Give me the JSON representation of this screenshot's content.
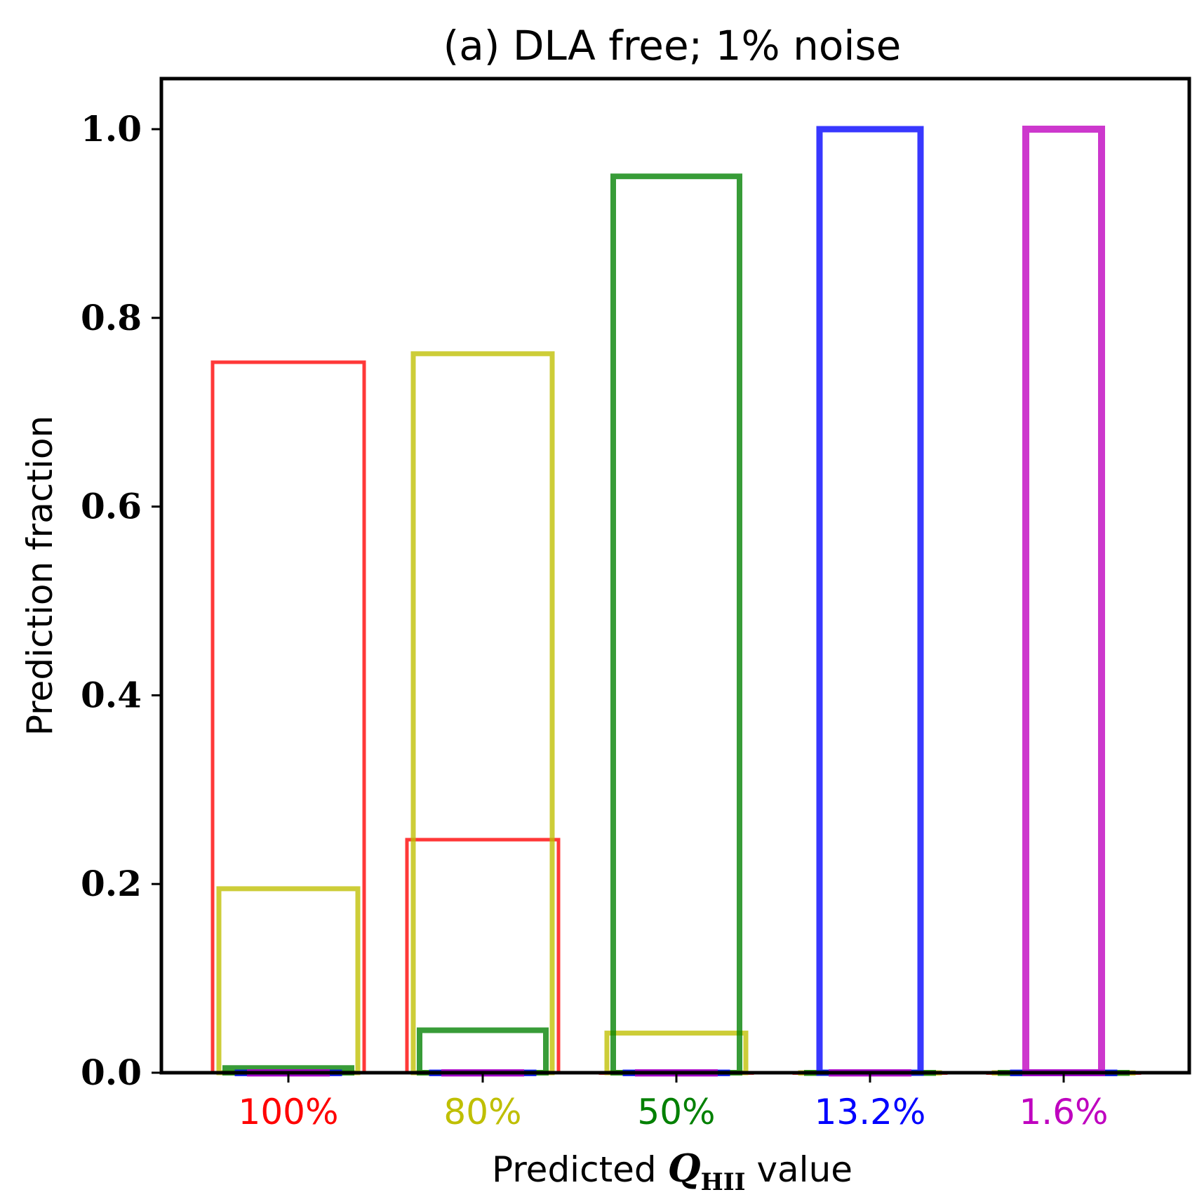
{
  "chart_data": {
    "type": "bar",
    "title": "(a) DLA free; 1% noise",
    "xlabel": {
      "prefix": "Predicted ",
      "symbol": "Q",
      "subscript": "HII",
      "suffix": " value"
    },
    "ylabel": "Prediction fraction",
    "ylim": [
      0,
      1.05
    ],
    "yticks": [
      0.0,
      0.2,
      0.4,
      0.6,
      0.8,
      1.0
    ],
    "ytick_labels": [
      "0.0",
      "0.2",
      "0.4",
      "0.6",
      "0.8",
      "1.0"
    ],
    "categories": [
      "100%",
      "80%",
      "50%",
      "13.2%",
      "1.6%"
    ],
    "category_colors": [
      "#ff0000",
      "#bfbf00",
      "#008000",
      "#0000ff",
      "#bf00bf"
    ],
    "grid": false,
    "style": "unfilled outlined bars, nested per category",
    "series": [
      {
        "name": "100%",
        "color": "#ff0000",
        "values": [
          0.753,
          0.247,
          0.0,
          0.0,
          0.0
        ]
      },
      {
        "name": "80%",
        "color": "#bfbf00",
        "values": [
          0.195,
          0.762,
          0.042,
          0.0,
          0.0
        ]
      },
      {
        "name": "50%",
        "color": "#008000",
        "values": [
          0.005,
          0.045,
          0.95,
          0.0,
          0.0
        ]
      },
      {
        "name": "13.2%",
        "color": "#0000ff",
        "values": [
          0.0,
          0.0,
          0.0,
          1.0,
          0.0
        ]
      },
      {
        "name": "1.6%",
        "color": "#bf00bf",
        "values": [
          0.0,
          0.0,
          0.0,
          0.0,
          1.0
        ]
      }
    ]
  }
}
